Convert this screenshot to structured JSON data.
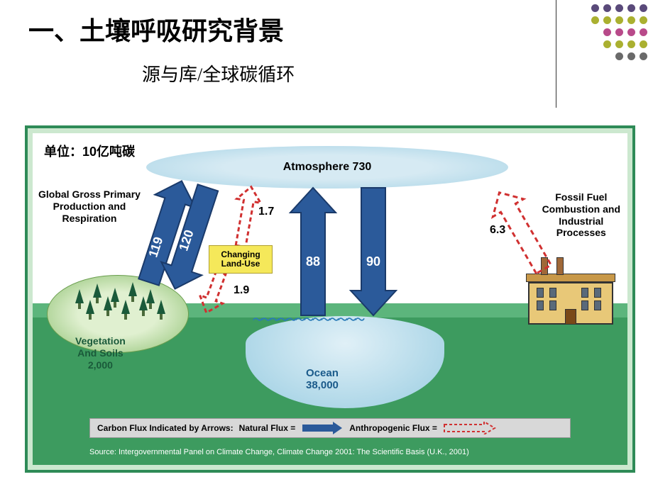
{
  "title": "一、土壤呼吸研究背景",
  "subtitle": "源与库/全球碳循环",
  "unit_label": "单位：10亿吨碳",
  "dots": {
    "colors": [
      "#5a4a7a",
      "#aab030",
      "#b84a8a",
      "#aab030",
      "#6a6a6a"
    ],
    "pattern": [
      5,
      5,
      4,
      4,
      3
    ]
  },
  "reservoirs": {
    "atmosphere": {
      "label": "Atmosphere 730",
      "value": 730,
      "color_inner": "#d6eaf3",
      "color_outer": "#a8d4e6"
    },
    "ocean": {
      "label": "Ocean",
      "value": "38,000",
      "color": "#a8d4e6"
    },
    "vegetation_soils": {
      "label": "Vegetation\nAnd Soils",
      "value": "2,000",
      "color": "#8bbf6f"
    }
  },
  "fluxes": {
    "gpp_up": {
      "value": 119,
      "type": "natural",
      "color": "#2b5a9a"
    },
    "respiration_down": {
      "value": 120,
      "type": "natural",
      "color": "#2b5a9a"
    },
    "ocean_to_atm": {
      "value": 88,
      "type": "natural",
      "color": "#2b5a9a"
    },
    "atm_to_ocean": {
      "value": 90,
      "type": "natural",
      "color": "#2b5a9a"
    },
    "land_use_up": {
      "value": 1.7,
      "type": "anthropogenic",
      "color": "#d03030"
    },
    "land_use_down": {
      "value": 1.9,
      "type": "anthropogenic",
      "color": "#d03030"
    },
    "fossil_fuel": {
      "value": 6.3,
      "type": "anthropogenic",
      "color": "#d03030"
    }
  },
  "labels": {
    "gpp": "Global Gross Primary\nProduction and\nRespiration",
    "fossil": "Fossil Fuel\nCombustion and\nIndustrial\nProcesses",
    "changing_land_use": "Changing\nLand-Use"
  },
  "legend": {
    "prefix": "Carbon Flux Indicated by Arrows:",
    "natural": "Natural Flux =",
    "anthropogenic": "Anthropogenic Flux =",
    "natural_color": "#2b5a9a",
    "anthro_color": "#d03030"
  },
  "source": "Source: Intergovernmental Panel on Climate Change, Climate Change 2001: The Scientific Basis (U.K., 2001)",
  "styling": {
    "frame_border_color": "#2e8b57",
    "frame_bg": "#cce8cf",
    "land_color": "#3d9b5f",
    "land_back_color": "#5cb57c",
    "factory_body": "#e8c878",
    "factory_roof": "#c89848"
  }
}
